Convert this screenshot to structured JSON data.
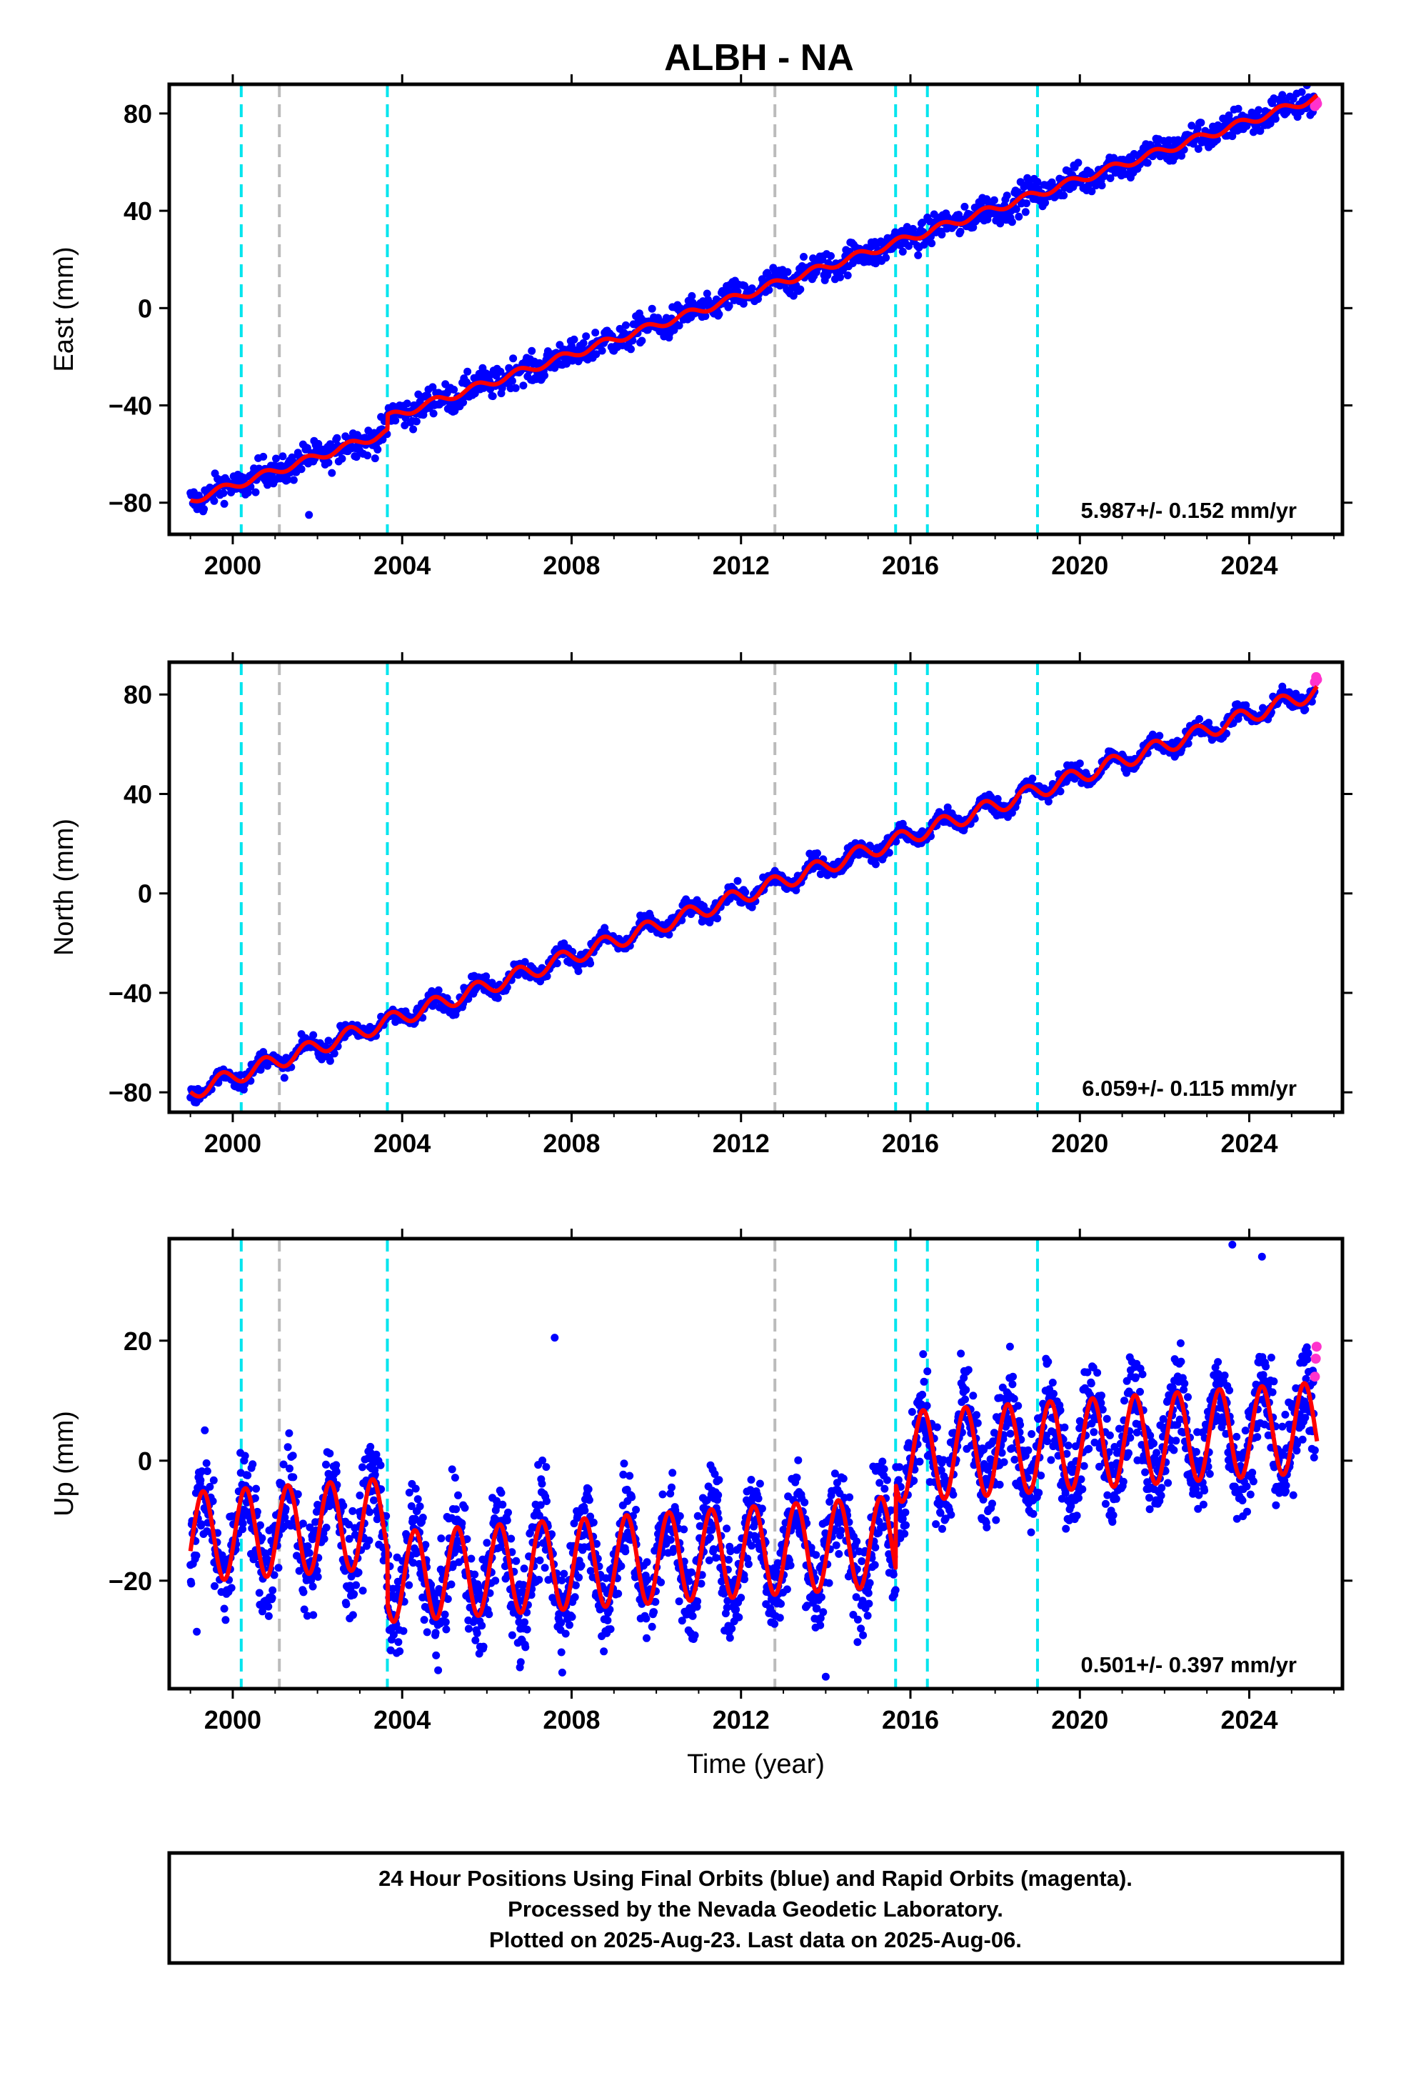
{
  "title": "ALBH - NA",
  "footer": {
    "line1": "24 Hour Positions Using Final Orbits (blue) and Rapid Orbits (magenta).",
    "line2": "Processed by the Nevada Geodetic Laboratory.",
    "line3": "Plotted on 2025-Aug-23. Last data on 2025-Aug-06."
  },
  "colors": {
    "final_orbits": "#0000ff",
    "rapid_orbits": "#ff33cc",
    "model": "#ff0000",
    "equipment_change": "#00e5ee",
    "other_event": "#bbbbbb"
  },
  "chart_data": [
    {
      "type": "scatter",
      "ylabel": "East (mm)",
      "xlabel": "",
      "xlim": [
        1998.5,
        2026.2
      ],
      "ylim": [
        -93,
        92
      ],
      "xticks": [
        2000,
        2004,
        2008,
        2012,
        2016,
        2020,
        2024
      ],
      "xtick_labels": [
        "2000",
        "2004",
        "2008",
        "2012",
        "2016",
        "2020",
        "2024"
      ],
      "yticks": [
        -80,
        -40,
        0,
        40,
        80
      ],
      "ytick_labels": [
        "−80",
        "−40",
        "0",
        "40",
        "80"
      ],
      "rate_label": "5.987+/- 0.152 mm/yr",
      "vlines_cyan": [
        2000.2,
        2003.65,
        2015.65,
        2016.4,
        2019.0
      ],
      "vlines_gray": [
        2001.1,
        2012.8
      ],
      "model": {
        "t0": 2012.5,
        "y0": 2.0,
        "rate": 6.0,
        "amp": 1.6,
        "phase": 0.5,
        "offsets": [
          {
            "t": 2003.65,
            "dy": 6.0
          }
        ]
      },
      "scatter": {
        "step": 0.02,
        "noise": 3.0
      },
      "outliers": [
        {
          "x": 2001.8,
          "y": -85
        }
      ],
      "rapid_points": [
        {
          "x": 2025.55,
          "y": 83
        },
        {
          "x": 2025.58,
          "y": 85
        },
        {
          "x": 2025.6,
          "y": 84
        }
      ]
    },
    {
      "type": "scatter",
      "ylabel": "North (mm)",
      "xlabel": "",
      "xlim": [
        1998.5,
        2026.2
      ],
      "ylim": [
        -88,
        93
      ],
      "xticks": [
        2000,
        2004,
        2008,
        2012,
        2016,
        2020,
        2024
      ],
      "xtick_labels": [
        "2000",
        "2004",
        "2008",
        "2012",
        "2016",
        "2020",
        "2024"
      ],
      "yticks": [
        -80,
        -40,
        0,
        40,
        80
      ],
      "ytick_labels": [
        "−80",
        "−40",
        "0",
        "40",
        "80"
      ],
      "rate_label": "6.059+/- 0.115 mm/yr",
      "vlines_cyan": [
        2000.2,
        2003.65,
        2015.65,
        2016.4,
        2019.0
      ],
      "vlines_gray": [
        2001.1,
        2012.8
      ],
      "model": {
        "t0": 2012.5,
        "y0": 2.0,
        "rate": 6.06,
        "amp": 3.2,
        "phase": 0.5,
        "offsets": []
      },
      "scatter": {
        "step": 0.02,
        "noise": 1.8
      },
      "outliers": [],
      "rapid_points": [
        {
          "x": 2025.55,
          "y": 85
        },
        {
          "x": 2025.58,
          "y": 87
        },
        {
          "x": 2025.6,
          "y": 86
        }
      ]
    },
    {
      "type": "scatter",
      "ylabel": "Up (mm)",
      "xlabel": "Time (year)",
      "xlim": [
        1998.5,
        2026.2
      ],
      "ylim": [
        -38,
        37
      ],
      "xticks": [
        2000,
        2004,
        2008,
        2012,
        2016,
        2020,
        2024
      ],
      "xtick_labels": [
        "2000",
        "2004",
        "2008",
        "2012",
        "2016",
        "2020",
        "2024"
      ],
      "yticks": [
        -20,
        0,
        20
      ],
      "ytick_labels": [
        "−20",
        "0",
        "20"
      ],
      "rate_label": "0.501+/- 0.397 mm/yr",
      "vlines_cyan": [
        2000.2,
        2003.65,
        2015.65,
        2016.4,
        2019.0
      ],
      "vlines_gray": [
        2001.1,
        2012.8
      ],
      "model": {
        "t0": 2012.5,
        "y0": -6.0,
        "rate": 0.5,
        "amp": 7.5,
        "phase": 0.05,
        "offsets": [
          {
            "t": 2003.65,
            "dy": -9.0
          },
          {
            "t": 2015.65,
            "dy": 14.0
          }
        ]
      },
      "scatter": {
        "step": 0.01,
        "noise": 4.0
      },
      "outliers": [
        {
          "x": 2014.0,
          "y": -36
        },
        {
          "x": 2007.6,
          "y": 20.5
        },
        {
          "x": 1999.15,
          "y": -28.5
        },
        {
          "x": 2023.6,
          "y": 36
        },
        {
          "x": 2024.3,
          "y": 34
        }
      ],
      "rapid_points": [
        {
          "x": 2025.55,
          "y": 14
        },
        {
          "x": 2025.57,
          "y": 17
        },
        {
          "x": 2025.59,
          "y": 19
        }
      ]
    }
  ]
}
